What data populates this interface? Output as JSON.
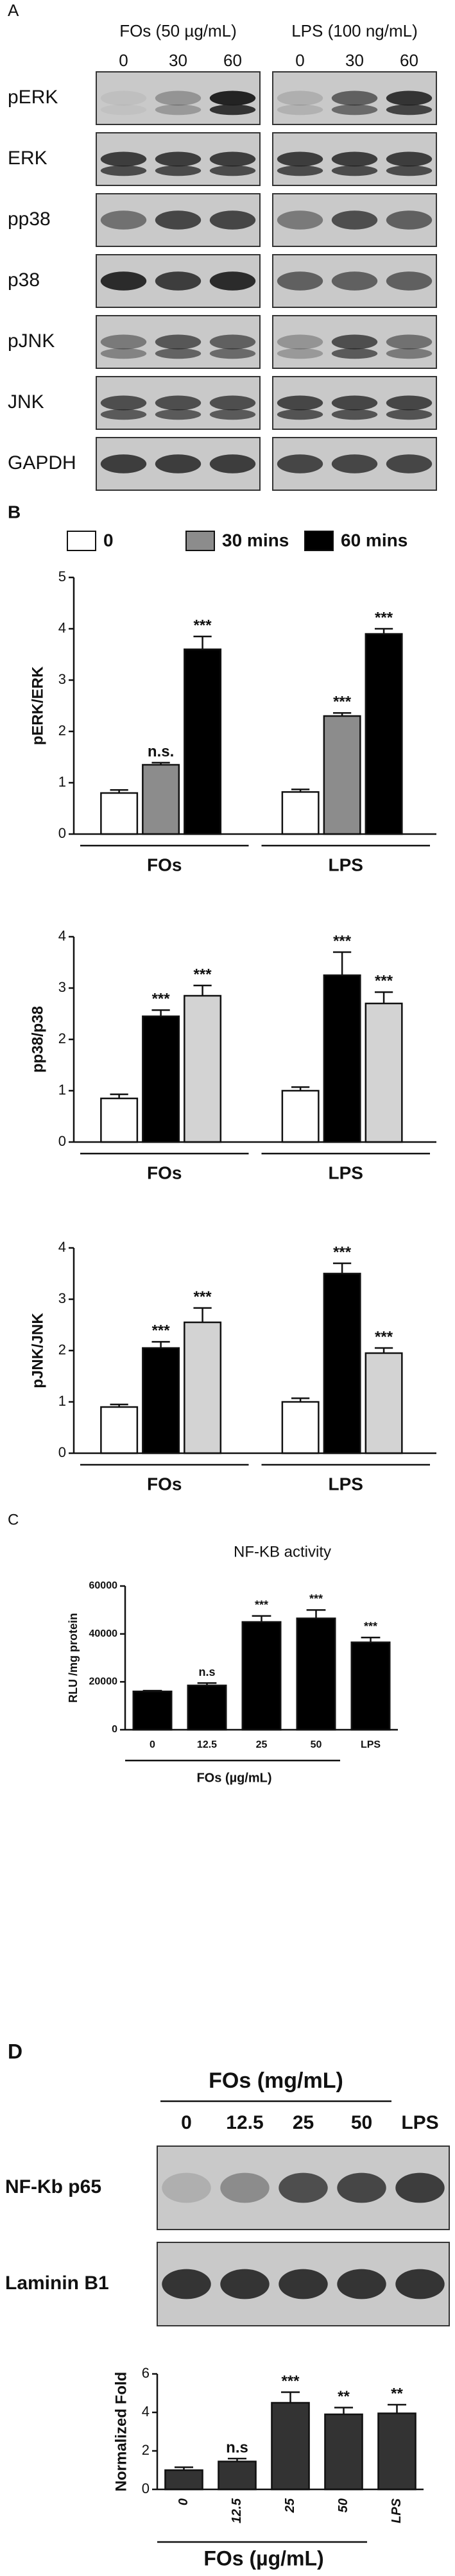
{
  "panels": [
    "A",
    "B",
    "C",
    "D"
  ],
  "blots": [
    {
      "groups": [
        {
          "title": "FOs (50 µg/mL)",
          "lanes": [
            "0",
            "30",
            "60"
          ]
        },
        {
          "title": "LPS (100 ng/mL)",
          "lanes": [
            "0",
            "30",
            "60"
          ]
        }
      ],
      "rows": [
        "pERK",
        "ERK",
        "pp38",
        "p38",
        "pJNK",
        "JNK",
        "GAPDH"
      ]
    },
    {
      "title": "FOs (mg/mL)",
      "lanes": [
        "0",
        "12.5",
        "25",
        "50",
        "LPS"
      ],
      "rows": [
        "NF-Kb p65",
        "Laminin B1"
      ]
    }
  ],
  "chart_data": [
    {
      "type": "bar",
      "ylabel": "pERK/ERK",
      "categories": [
        "FOs",
        "LPS"
      ],
      "series": [
        {
          "name": "0",
          "color": "#ffffff",
          "values": [
            0.8,
            0.82
          ],
          "errors": [
            0.06,
            0.05
          ],
          "annotations": [
            null,
            null
          ]
        },
        {
          "name": "30 mins",
          "color": "#8c8c8c",
          "values": [
            1.35,
            2.3
          ],
          "errors": [
            0.04,
            0.06
          ],
          "annotations": [
            "n.s.",
            "***"
          ]
        },
        {
          "name": "60 mins",
          "color": "#000000",
          "values": [
            3.6,
            3.9
          ],
          "errors": [
            0.25,
            0.1
          ],
          "annotations": [
            "***",
            "***"
          ]
        }
      ],
      "ylim": [
        0,
        5
      ],
      "yticks": [
        0,
        1,
        2,
        3,
        4,
        5
      ]
    },
    {
      "type": "bar",
      "ylabel": "pp38/p38",
      "categories": [
        "FOs",
        "LPS"
      ],
      "series": [
        {
          "color": "#ffffff",
          "values": [
            0.85,
            1.0
          ],
          "errors": [
            0.08,
            0.07
          ],
          "annotations": [
            null,
            null
          ]
        },
        {
          "color": "#000000",
          "values": [
            2.45,
            3.25
          ],
          "errors": [
            0.12,
            0.45
          ],
          "annotations": [
            "***",
            "***"
          ]
        },
        {
          "color": "#d3d3d3",
          "values": [
            2.85,
            2.7
          ],
          "errors": [
            0.2,
            0.22
          ],
          "annotations": [
            "***",
            "***"
          ]
        }
      ],
      "ylim": [
        0,
        4
      ],
      "yticks": [
        0,
        1,
        2,
        3,
        4
      ]
    },
    {
      "type": "bar",
      "ylabel": "pJNK/JNK",
      "categories": [
        "FOs",
        "LPS"
      ],
      "series": [
        {
          "color": "#ffffff",
          "values": [
            0.9,
            1.0
          ],
          "errors": [
            0.05,
            0.07
          ],
          "annotations": [
            null,
            null
          ]
        },
        {
          "color": "#000000",
          "values": [
            2.05,
            3.5
          ],
          "errors": [
            0.12,
            0.2
          ],
          "annotations": [
            "***",
            "***"
          ]
        },
        {
          "color": "#d3d3d3",
          "values": [
            2.55,
            1.95
          ],
          "errors": [
            0.28,
            0.1
          ],
          "annotations": [
            "***",
            "***"
          ]
        }
      ],
      "ylim": [
        0,
        4
      ],
      "yticks": [
        0,
        1,
        2,
        3,
        4
      ]
    },
    {
      "type": "bar",
      "title": "NF-KB activity",
      "ylabel": "RLU /mg protein",
      "xlabel": "FOs (µg/mL)",
      "categories": [
        "0",
        "12.5",
        "25",
        "50",
        "LPS"
      ],
      "values": [
        16000,
        18500,
        45000,
        46500,
        36500
      ],
      "errors": [
        300,
        1000,
        2500,
        3500,
        2000
      ],
      "annotations": [
        null,
        "n.s",
        "***",
        "***",
        "***"
      ],
      "color": "#000000",
      "ylim": [
        0,
        60000
      ],
      "yticks": [
        0,
        20000,
        40000,
        60000
      ]
    },
    {
      "type": "bar",
      "ylabel": "Normalized Fold",
      "xlabel": "FOs (µg/mL)",
      "categories": [
        "0",
        "12.5",
        "25",
        "50",
        "LPS"
      ],
      "values": [
        1.0,
        1.45,
        4.5,
        3.9,
        3.95
      ],
      "errors": [
        0.15,
        0.15,
        0.55,
        0.35,
        0.45
      ],
      "annotations": [
        null,
        "n.s",
        "***",
        "**",
        "**"
      ],
      "color": "#333333",
      "ylim": [
        0,
        6
      ],
      "yticks": [
        0,
        2,
        4,
        6
      ]
    }
  ]
}
